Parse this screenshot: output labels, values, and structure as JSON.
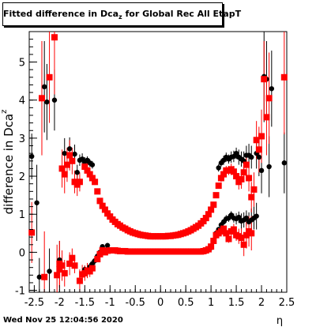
{
  "title": {
    "prefix": "Fitted difference in Dca",
    "subscript": "z",
    "suffix": " for Global Rec All EtapT"
  },
  "timestamp": "Wed Nov 25 12:04:56 2020",
  "colors": {
    "series_black": "#000000",
    "series_red": "#ff0000"
  },
  "chart_data": {
    "type": "scatter",
    "title": "Fitted difference in Dca_z for Global Rec All EtapT",
    "xlabel": "η",
    "ylabel": "difference in Dca_z",
    "xlim": [
      -2.6,
      2.5
    ],
    "ylim": [
      -1.05,
      5.8
    ],
    "x_ticks": [
      -2.5,
      -2,
      -1.5,
      -1,
      -0.5,
      0,
      0.5,
      1,
      1.5,
      2,
      2.5
    ],
    "x_tick_labels": [
      "-2.5",
      "-2",
      "-1.5",
      "-1",
      "-0.5",
      "0",
      "0.5",
      "1",
      "1.5",
      "2",
      "2.5"
    ],
    "y_ticks": [
      -1,
      0,
      1,
      2,
      3,
      4,
      5
    ],
    "y_tick_labels": [
      "-1",
      "0",
      "1",
      "2",
      "3",
      "4",
      "5"
    ],
    "grid": false,
    "legend": "none",
    "series": [
      {
        "color": "black",
        "marker": "circle-small",
        "points": [
          [
            -2.55,
            2.52,
            0.6
          ],
          [
            -2.45,
            1.3,
            1.0
          ],
          [
            -2.4,
            -0.65,
            0.5
          ],
          [
            -2.3,
            4.35,
            1.2
          ],
          [
            -2.25,
            3.95,
            1.0
          ],
          [
            -2.2,
            -0.5,
            0.6
          ],
          [
            -2.1,
            4.0,
            0.8
          ],
          [
            -2.0,
            -0.2,
            0.5
          ],
          [
            -1.9,
            2.6,
            0.4
          ],
          [
            -1.8,
            2.72,
            0.3
          ],
          [
            -1.7,
            2.58,
            0.25
          ],
          [
            -1.65,
            2.1,
            0.2
          ],
          [
            -1.6,
            2.42,
            0.15
          ],
          [
            -1.55,
            2.45,
            0.15
          ],
          [
            -1.5,
            2.38,
            0.12
          ],
          [
            -1.45,
            2.42,
            0.1
          ],
          [
            -1.4,
            2.35,
            0.1
          ],
          [
            -1.35,
            2.3,
            0.1
          ],
          [
            -1.5,
            -0.45,
            0.1
          ],
          [
            -1.45,
            -0.5,
            0.1
          ],
          [
            -1.4,
            -0.38,
            0.1
          ],
          [
            -1.35,
            -0.3,
            0.1
          ],
          [
            -1.3,
            -0.22,
            0.1
          ],
          [
            -1.25,
            -0.1,
            0.08
          ],
          [
            -1.2,
            0.0,
            0.08
          ],
          [
            -1.15,
            0.15,
            0.06
          ],
          [
            -1.1,
            0.05,
            0.06
          ],
          [
            -1.05,
            0.18,
            0.05
          ],
          [
            -1.0,
            0.05,
            0.05
          ],
          [
            1.0,
            0.12,
            0.05
          ],
          [
            1.05,
            0.3,
            0.05
          ],
          [
            1.1,
            0.5,
            0.06
          ],
          [
            1.15,
            0.6,
            0.06
          ],
          [
            1.2,
            0.72,
            0.08
          ],
          [
            1.25,
            0.8,
            0.08
          ],
          [
            1.3,
            0.88,
            0.1
          ],
          [
            1.35,
            0.9,
            0.1
          ],
          [
            1.4,
            0.98,
            0.1
          ],
          [
            1.45,
            0.9,
            0.12
          ],
          [
            1.5,
            0.88,
            0.15
          ],
          [
            1.55,
            0.92,
            0.15
          ],
          [
            1.6,
            0.82,
            0.2
          ],
          [
            1.65,
            0.85,
            0.2
          ],
          [
            1.7,
            0.9,
            0.2
          ],
          [
            1.75,
            0.8,
            0.25
          ],
          [
            1.8,
            0.85,
            0.3
          ],
          [
            1.85,
            0.9,
            0.3
          ],
          [
            1.9,
            0.95,
            0.35
          ],
          [
            1.15,
            2.22,
            0.1
          ],
          [
            1.2,
            2.35,
            0.1
          ],
          [
            1.25,
            2.42,
            0.12
          ],
          [
            1.3,
            2.5,
            0.12
          ],
          [
            1.35,
            2.45,
            0.12
          ],
          [
            1.4,
            2.5,
            0.15
          ],
          [
            1.45,
            2.52,
            0.15
          ],
          [
            1.5,
            2.6,
            0.15
          ],
          [
            1.55,
            2.5,
            0.2
          ],
          [
            1.6,
            2.45,
            0.2
          ],
          [
            1.65,
            2.4,
            0.25
          ],
          [
            1.7,
            2.55,
            0.25
          ],
          [
            1.75,
            2.55,
            0.3
          ],
          [
            1.8,
            2.5,
            0.3
          ],
          [
            1.9,
            2.6,
            0.4
          ],
          [
            1.95,
            2.5,
            0.5
          ],
          [
            2.0,
            2.15,
            0.6
          ],
          [
            2.05,
            4.62,
            1.2
          ],
          [
            2.1,
            4.55,
            1.0
          ],
          [
            2.15,
            2.25,
            0.8
          ],
          [
            2.2,
            4.3,
            1.0
          ],
          [
            2.45,
            2.35,
            0.8
          ]
        ]
      },
      {
        "color": "red",
        "marker": "square",
        "points": [
          [
            -2.55,
            0.52,
            0.8
          ],
          [
            -2.35,
            4.05,
            1.5
          ],
          [
            -2.3,
            -0.65,
            1.2
          ],
          [
            -2.2,
            4.6,
            1.2
          ],
          [
            -2.1,
            5.65,
            1.5
          ],
          [
            -2.05,
            -0.6,
            0.8
          ],
          [
            -2.0,
            -0.3,
            0.6
          ],
          [
            -1.95,
            2.2,
            0.5
          ],
          [
            -1.9,
            2.05,
            0.5
          ],
          [
            -1.85,
            2.3,
            0.45
          ],
          [
            -1.8,
            2.55,
            0.4
          ],
          [
            -1.75,
            2.4,
            0.35
          ],
          [
            -1.7,
            1.85,
            0.3
          ],
          [
            -1.65,
            1.78,
            0.3
          ],
          [
            -1.6,
            1.85,
            0.25
          ],
          [
            -1.6,
            -0.75,
            0.3
          ],
          [
            -1.55,
            -0.58,
            0.25
          ],
          [
            -1.5,
            -0.55,
            0.2
          ],
          [
            -1.45,
            -0.48,
            0.2
          ],
          [
            -1.5,
            2.25,
            0.15
          ],
          [
            -1.45,
            2.15,
            0.12
          ],
          [
            -1.4,
            2.05,
            0.12
          ],
          [
            -1.35,
            1.95,
            0.1
          ],
          [
            -1.3,
            1.85,
            0.08
          ],
          [
            -1.25,
            1.6,
            0.06
          ],
          [
            -1.2,
            1.35,
            0.05
          ],
          [
            -1.15,
            1.22,
            0.05
          ],
          [
            -1.1,
            1.12,
            0.04
          ],
          [
            -1.05,
            1.02,
            0.04
          ],
          [
            -1.0,
            0.94,
            0.03
          ],
          [
            -0.95,
            0.86,
            0.03
          ],
          [
            -0.9,
            0.8,
            0.03
          ],
          [
            -0.85,
            0.74,
            0.03
          ],
          [
            -0.8,
            0.7,
            0.03
          ],
          [
            -0.75,
            0.65,
            0.03
          ],
          [
            -0.7,
            0.62,
            0.03
          ],
          [
            -0.65,
            0.58,
            0.02
          ],
          [
            -0.6,
            0.55,
            0.02
          ],
          [
            -0.55,
            0.52,
            0.02
          ],
          [
            -0.5,
            0.5,
            0.02
          ],
          [
            -0.45,
            0.48,
            0.02
          ],
          [
            -0.4,
            0.46,
            0.02
          ],
          [
            -0.35,
            0.45,
            0.02
          ],
          [
            -0.3,
            0.44,
            0.02
          ],
          [
            -0.25,
            0.43,
            0.02
          ],
          [
            -0.2,
            0.42,
            0.02
          ],
          [
            -0.15,
            0.42,
            0.02
          ],
          [
            -0.1,
            0.42,
            0.02
          ],
          [
            -0.05,
            0.42,
            0.02
          ],
          [
            0.0,
            0.42,
            0.02
          ],
          [
            0.05,
            0.42,
            0.02
          ],
          [
            0.1,
            0.42,
            0.02
          ],
          [
            0.15,
            0.43,
            0.02
          ],
          [
            0.2,
            0.43,
            0.02
          ],
          [
            0.25,
            0.44,
            0.02
          ],
          [
            0.3,
            0.45,
            0.02
          ],
          [
            0.35,
            0.46,
            0.02
          ],
          [
            0.4,
            0.48,
            0.02
          ],
          [
            0.45,
            0.5,
            0.02
          ],
          [
            0.5,
            0.52,
            0.02
          ],
          [
            0.55,
            0.55,
            0.02
          ],
          [
            0.6,
            0.58,
            0.02
          ],
          [
            0.65,
            0.62,
            0.03
          ],
          [
            0.7,
            0.66,
            0.03
          ],
          [
            0.75,
            0.7,
            0.03
          ],
          [
            0.8,
            0.76,
            0.03
          ],
          [
            0.85,
            0.82,
            0.03
          ],
          [
            0.9,
            0.9,
            0.03
          ],
          [
            0.95,
            1.0,
            0.04
          ],
          [
            1.0,
            1.12,
            0.04
          ],
          [
            1.05,
            1.25,
            0.05
          ],
          [
            1.1,
            1.5,
            0.06
          ],
          [
            1.15,
            1.75,
            0.08
          ],
          [
            1.2,
            1.95,
            0.1
          ],
          [
            1.25,
            2.05,
            0.1
          ],
          [
            1.3,
            2.15,
            0.12
          ],
          [
            1.35,
            2.15,
            0.12
          ],
          [
            1.4,
            2.18,
            0.15
          ],
          [
            1.45,
            2.12,
            0.15
          ],
          [
            1.5,
            2.0,
            0.2
          ],
          [
            1.55,
            1.85,
            0.2
          ],
          [
            1.6,
            1.92,
            0.25
          ],
          [
            1.65,
            2.1,
            0.25
          ],
          [
            1.7,
            2.3,
            0.3
          ],
          [
            1.75,
            1.95,
            0.35
          ],
          [
            1.8,
            1.45,
            0.4
          ],
          [
            1.85,
            1.65,
            0.45
          ],
          [
            1.9,
            2.95,
            0.5
          ],
          [
            1.95,
            2.7,
            0.6
          ],
          [
            2.0,
            3.05,
            0.7
          ],
          [
            2.05,
            4.55,
            1.0
          ],
          [
            2.1,
            3.55,
            1.0
          ],
          [
            2.15,
            4.05,
            1.2
          ],
          [
            2.45,
            4.6,
            1.5
          ],
          [
            -1.25,
            -0.18,
            0.05
          ],
          [
            -1.2,
            -0.05,
            0.05
          ],
          [
            -1.15,
            0.05,
            0.04
          ],
          [
            -1.1,
            0.0,
            0.04
          ],
          [
            -1.05,
            0.04,
            0.04
          ],
          [
            -1.0,
            0.05,
            0.04
          ],
          [
            -0.95,
            0.05,
            0.03
          ],
          [
            -0.9,
            0.05,
            0.03
          ],
          [
            -0.85,
            0.04,
            0.03
          ],
          [
            -0.8,
            0.03,
            0.03
          ],
          [
            -0.75,
            0.03,
            0.03
          ],
          [
            -0.7,
            0.03,
            0.03
          ],
          [
            -0.65,
            0.02,
            0.03
          ],
          [
            -0.6,
            0.02,
            0.03
          ],
          [
            -0.55,
            0.02,
            0.03
          ],
          [
            -0.5,
            0.02,
            0.03
          ],
          [
            -0.45,
            0.02,
            0.02
          ],
          [
            -0.4,
            0.02,
            0.02
          ],
          [
            -0.35,
            0.02,
            0.02
          ],
          [
            -0.3,
            0.02,
            0.02
          ],
          [
            -0.25,
            0.02,
            0.02
          ],
          [
            -0.2,
            0.02,
            0.02
          ],
          [
            -0.15,
            0.02,
            0.02
          ],
          [
            -0.1,
            0.02,
            0.02
          ],
          [
            -0.05,
            0.02,
            0.02
          ],
          [
            0.0,
            0.02,
            0.02
          ],
          [
            0.05,
            0.02,
            0.02
          ],
          [
            0.1,
            0.02,
            0.02
          ],
          [
            0.15,
            0.02,
            0.02
          ],
          [
            0.2,
            0.02,
            0.02
          ],
          [
            0.25,
            0.02,
            0.02
          ],
          [
            0.3,
            0.02,
            0.02
          ],
          [
            0.35,
            0.02,
            0.02
          ],
          [
            0.4,
            0.02,
            0.02
          ],
          [
            0.45,
            0.02,
            0.02
          ],
          [
            0.5,
            0.02,
            0.02
          ],
          [
            0.55,
            0.02,
            0.02
          ],
          [
            0.6,
            0.02,
            0.02
          ],
          [
            0.65,
            0.02,
            0.02
          ],
          [
            0.7,
            0.02,
            0.02
          ],
          [
            0.75,
            0.02,
            0.02
          ],
          [
            0.8,
            0.02,
            0.02
          ],
          [
            0.85,
            0.03,
            0.03
          ],
          [
            0.9,
            0.05,
            0.03
          ],
          [
            0.95,
            0.08,
            0.03
          ],
          [
            1.0,
            0.15,
            0.04
          ],
          [
            1.05,
            0.3,
            0.05
          ],
          [
            1.1,
            0.45,
            0.06
          ],
          [
            1.15,
            0.5,
            0.06
          ],
          [
            1.2,
            0.55,
            0.08
          ],
          [
            1.25,
            0.62,
            0.08
          ],
          [
            1.3,
            0.5,
            0.1
          ],
          [
            1.35,
            0.35,
            0.1
          ],
          [
            1.4,
            0.55,
            0.12
          ],
          [
            1.45,
            0.6,
            0.15
          ],
          [
            1.5,
            0.45,
            0.15
          ],
          [
            1.55,
            0.42,
            0.2
          ],
          [
            1.6,
            0.38,
            0.25
          ],
          [
            1.65,
            0.2,
            0.3
          ],
          [
            1.7,
            0.45,
            0.35
          ],
          [
            1.75,
            0.55,
            0.4
          ],
          [
            1.8,
            0.5,
            0.45
          ],
          [
            -2.0,
            -0.45,
            0.5
          ],
          [
            -1.95,
            -0.35,
            0.4
          ],
          [
            -1.9,
            -0.55,
            0.35
          ],
          [
            -1.8,
            -0.3,
            0.3
          ],
          [
            -1.75,
            -0.15,
            0.25
          ],
          [
            -1.7,
            -0.35,
            0.2
          ],
          [
            -1.4,
            -0.5,
            0.15
          ],
          [
            -1.35,
            -0.42,
            0.15
          ]
        ]
      }
    ]
  }
}
